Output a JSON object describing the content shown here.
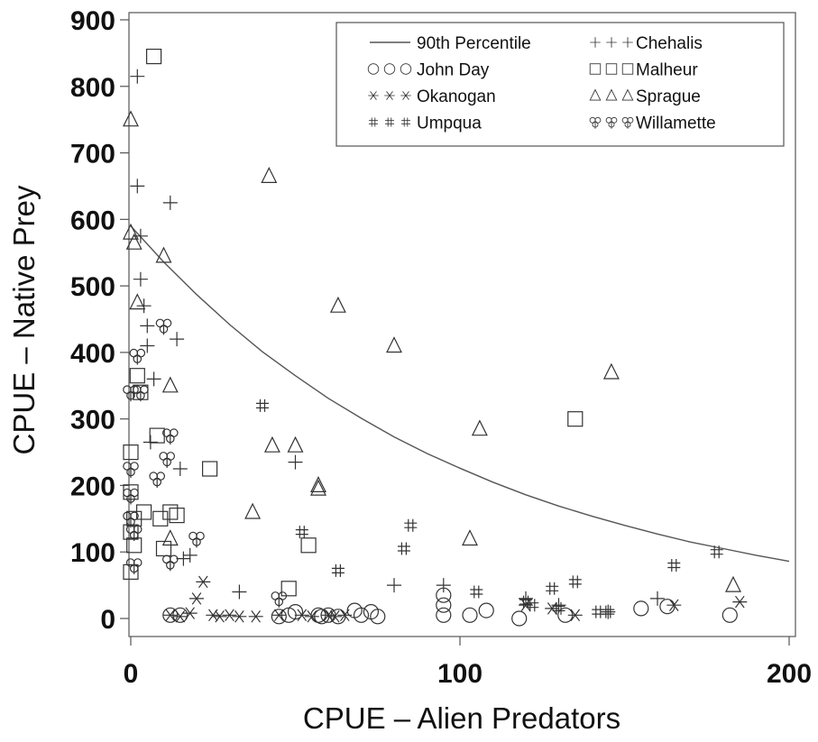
{
  "chart_data": {
    "type": "scatter",
    "title": "",
    "xlabel": "CPUE  –  Alien Predators",
    "ylabel": "CPUE  –  Native Prey",
    "xlim": [
      0,
      200
    ],
    "ylim": [
      0,
      900
    ],
    "xticks": [
      0,
      100,
      200
    ],
    "yticks": [
      0,
      100,
      200,
      300,
      400,
      500,
      600,
      700,
      800,
      900
    ],
    "grid": false,
    "legend_position": "top-right",
    "curve": {
      "name": "90th Percentile",
      "marker": "line",
      "x": [
        0,
        10,
        20,
        30,
        40,
        50,
        60,
        70,
        80,
        90,
        100,
        110,
        120,
        130,
        140,
        150,
        160,
        170,
        180,
        190,
        200
      ],
      "y": [
        590,
        536,
        487,
        442,
        401,
        365,
        331,
        301,
        273,
        248,
        226,
        205,
        186,
        169,
        154,
        140,
        127,
        115,
        105,
        95,
        86
      ]
    },
    "series": [
      {
        "name": "Chehalis",
        "marker": "plus",
        "x": [
          2,
          2,
          3,
          3,
          4,
          5,
          5,
          6,
          7,
          12,
          14,
          15,
          16,
          18,
          33,
          50,
          80,
          95,
          120,
          130,
          145,
          160
        ],
        "y": [
          815,
          650,
          575,
          510,
          470,
          440,
          410,
          265,
          360,
          625,
          420,
          225,
          90,
          95,
          40,
          235,
          50,
          50,
          30,
          20,
          10,
          30
        ]
      },
      {
        "name": "John Day",
        "marker": "circle",
        "x": [
          12,
          15,
          45,
          48,
          50,
          57,
          58,
          60,
          63,
          68,
          70,
          73,
          75,
          95,
          95,
          95,
          103,
          108,
          118,
          132,
          155,
          163,
          182
        ],
        "y": [
          5,
          5,
          3,
          5,
          10,
          5,
          3,
          5,
          3,
          12,
          5,
          10,
          3,
          35,
          20,
          5,
          5,
          12,
          0,
          5,
          15,
          18,
          5
        ]
      },
      {
        "name": "Okanogan",
        "marker": "asterisk",
        "x": [
          12,
          15,
          18,
          20,
          22,
          25,
          27,
          30,
          33,
          38,
          45,
          52,
          55,
          60,
          62,
          65,
          120,
          128,
          135,
          165,
          185
        ],
        "y": [
          5,
          3,
          8,
          30,
          55,
          5,
          3,
          5,
          3,
          3,
          5,
          5,
          3,
          5,
          3,
          5,
          20,
          15,
          5,
          20,
          25
        ]
      },
      {
        "name": "Umpqua",
        "marker": "hash",
        "x": [
          40,
          52,
          63,
          83,
          85,
          105,
          120,
          122,
          128,
          130,
          135,
          142,
          145,
          165,
          178
        ],
        "y": [
          320,
          130,
          72,
          105,
          140,
          40,
          25,
          20,
          45,
          15,
          55,
          10,
          10,
          80,
          100
        ]
      },
      {
        "name": "Malheur",
        "marker": "square",
        "x": [
          0,
          0,
          0,
          0,
          1,
          1,
          2,
          3,
          4,
          7,
          8,
          9,
          10,
          12,
          14,
          24,
          48,
          54,
          135
        ],
        "y": [
          250,
          190,
          130,
          70,
          150,
          110,
          365,
          340,
          160,
          845,
          275,
          150,
          105,
          160,
          155,
          225,
          45,
          110,
          300
        ]
      },
      {
        "name": "Sprague",
        "marker": "triangle",
        "x": [
          0,
          0,
          1,
          2,
          10,
          12,
          12,
          37,
          42,
          43,
          50,
          57,
          57,
          63,
          80,
          106,
          103,
          146,
          183
        ],
        "y": [
          750,
          580,
          565,
          475,
          545,
          350,
          120,
          160,
          665,
          260,
          260,
          200,
          195,
          470,
          410,
          285,
          120,
          370,
          50
        ]
      },
      {
        "name": "Willamette",
        "marker": "clover",
        "x": [
          0,
          0,
          0,
          0,
          1,
          1,
          2,
          3,
          8,
          10,
          11,
          12,
          12,
          20,
          45
        ],
        "y": [
          340,
          225,
          185,
          150,
          130,
          80,
          395,
          340,
          210,
          440,
          240,
          275,
          85,
          120,
          30
        ]
      }
    ]
  }
}
